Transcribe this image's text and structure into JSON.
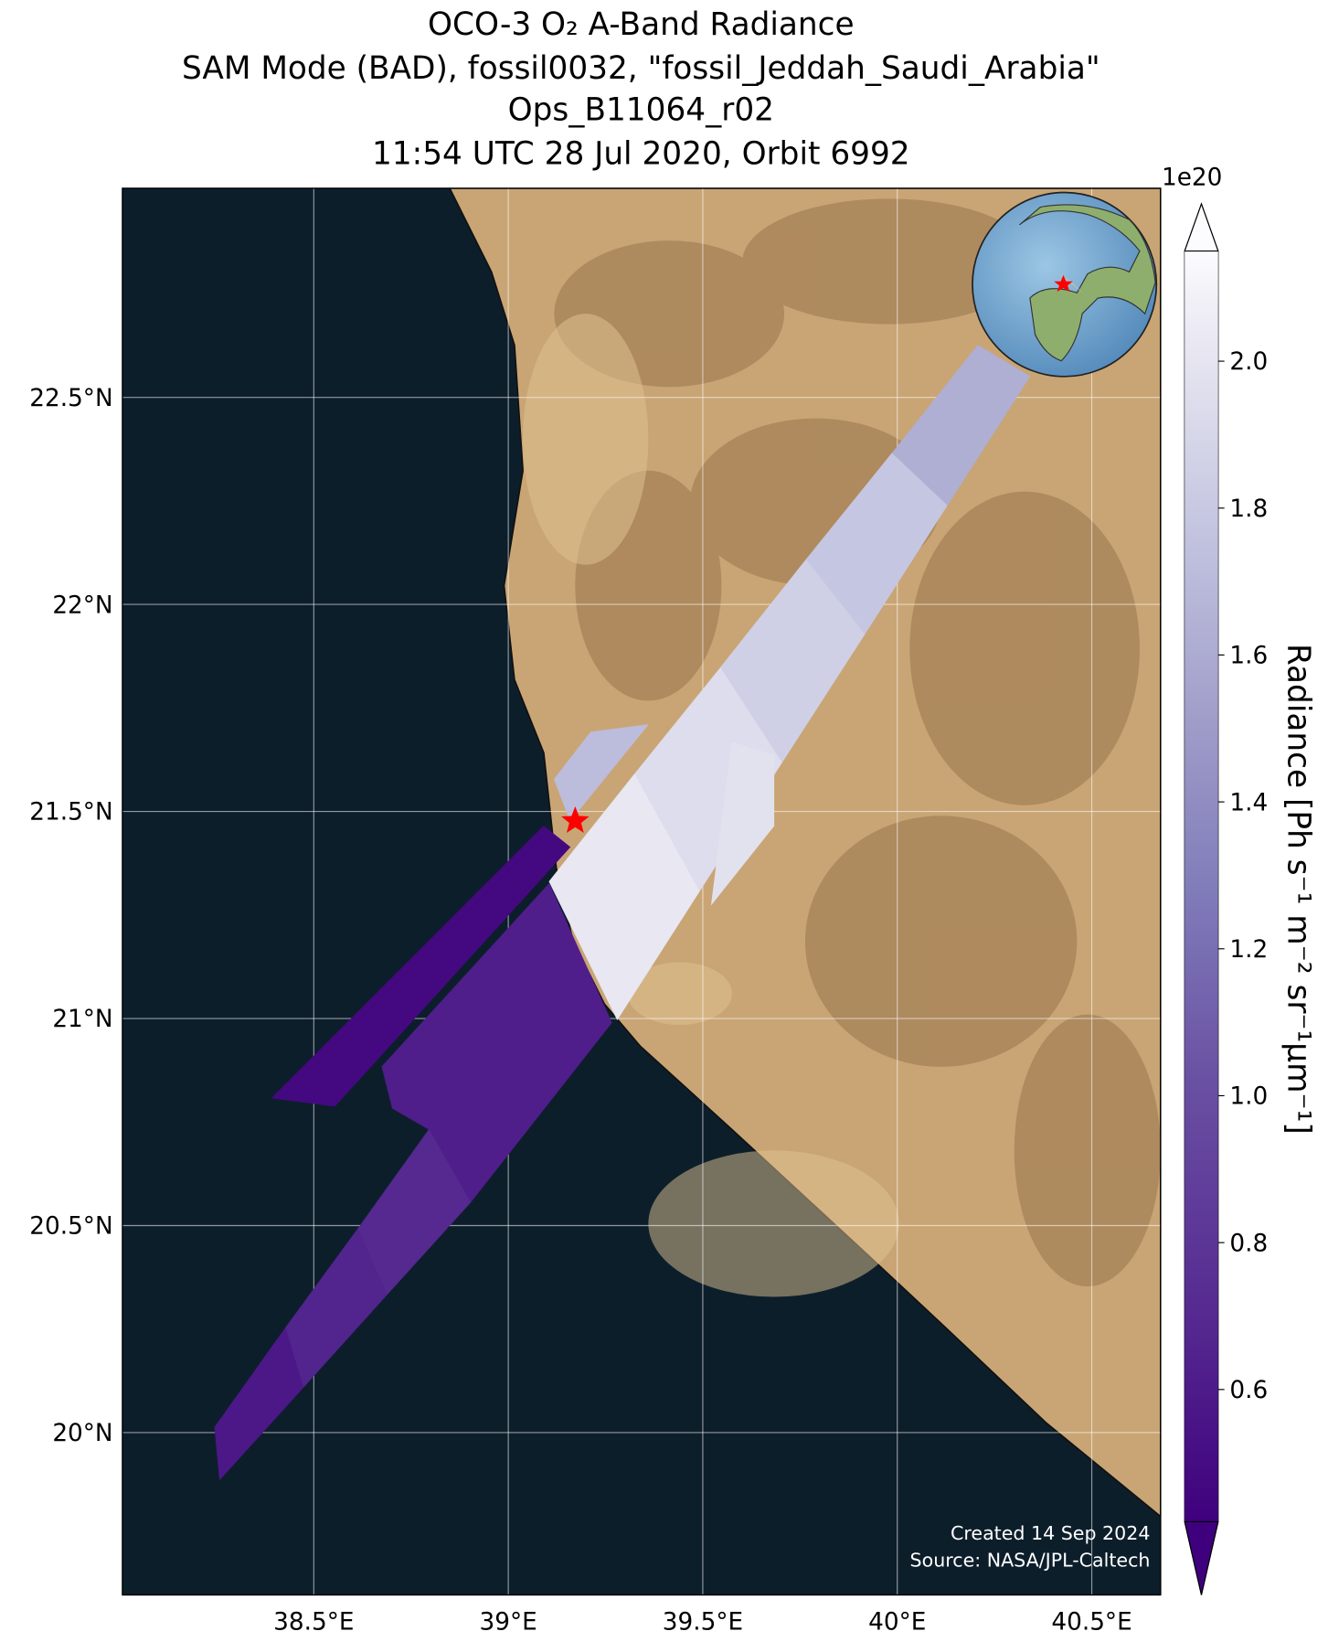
{
  "chart_data": {
    "type": "map",
    "title": [
      "OCO-3 O₂ A-Band Radiance",
      "SAM Mode (BAD), fossil0032, \"fossil_Jeddah_Saudi_Arabia\"",
      "Ops_B11064_r02",
      "11:54 UTC 28 Jul 2020, Orbit 6992"
    ],
    "xlim": [
      38.008,
      40.677
    ],
    "ylim": [
      19.608,
      23.005
    ],
    "xticks": [
      {
        "value": 38.5,
        "label": "38.5°E"
      },
      {
        "value": 39,
        "label": "39°E"
      },
      {
        "value": 39.5,
        "label": "39.5°E"
      },
      {
        "value": 40,
        "label": "40°E"
      },
      {
        "value": 40.5,
        "label": "40.5°E"
      }
    ],
    "yticks": [
      {
        "value": 20,
        "label": "20°N"
      },
      {
        "value": 20.5,
        "label": "20.5°N"
      },
      {
        "value": 21,
        "label": "21°N"
      },
      {
        "value": 21.5,
        "label": "21.5°N"
      },
      {
        "value": 22,
        "label": "22°N"
      },
      {
        "value": 22.5,
        "label": "22.5°N"
      }
    ],
    "grid": true,
    "colormap": "Purples",
    "clim": [
      0.42,
      2.15
    ],
    "colorbar_extend": "both",
    "colorbar_offset": "1e20",
    "colorbar_label": "Radiance [Ph s⁻¹ m⁻² sr⁻¹μm⁻¹]",
    "colorbar_ticks": [
      0.6,
      0.8,
      {
        "value": 1.0,
        "label": "1.0"
      },
      1.2,
      1.4,
      1.6,
      1.8,
      {
        "value": 2.0,
        "label": "2.0"
      }
    ],
    "footprints": [
      {
        "lon": [
          39.105,
          39.28,
          39.492,
          39.325
        ],
        "lat": [
          21.331,
          20.997,
          21.308,
          21.591
        ],
        "value": 2.02
      },
      {
        "lon": [
          39.325,
          39.492,
          39.704,
          39.546
        ],
        "lat": [
          21.591,
          21.308,
          21.619,
          21.848
        ],
        "value": 1.95
      },
      {
        "lon": [
          39.546,
          39.704,
          39.917,
          39.766
        ],
        "lat": [
          21.848,
          21.619,
          21.929,
          22.109
        ],
        "value": 1.85
      },
      {
        "lon": [
          39.766,
          39.917,
          40.129,
          39.987
        ],
        "lat": [
          22.109,
          21.929,
          22.24,
          22.366
        ],
        "value": 1.78
      },
      {
        "lon": [
          39.987,
          40.129,
          40.341,
          40.207
        ],
        "lat": [
          22.366,
          22.24,
          22.551,
          22.626
        ],
        "value": 1.62
      },
      {
        "lon": [
          39.575,
          39.683,
          39.683,
          39.522
        ],
        "lat": [
          21.667,
          21.636,
          21.465,
          21.275
        ],
        "value": 1.98
      },
      {
        "lon": [
          39.118,
          39.212,
          39.36,
          39.159
        ],
        "lat": [
          21.578,
          21.692,
          21.71,
          21.477
        ],
        "value": 1.72
      },
      {
        "lon": [
          38.392,
          39.091,
          39.159,
          38.554
        ],
        "lat": [
          20.808,
          21.465,
          21.414,
          20.788
        ],
        "value": 0.48
      },
      {
        "lon": [
          38.675,
          39.105,
          39.266,
          38.903,
          38.796,
          38.702
        ],
        "lat": [
          20.884,
          21.326,
          20.99,
          20.556,
          20.732,
          20.783
        ],
        "value": 0.62
      },
      {
        "lon": [
          38.796,
          38.903,
          38.688,
          38.613
        ],
        "lat": [
          20.732,
          20.556,
          20.333,
          20.492
        ],
        "value": 0.7
      },
      {
        "lon": [
          38.613,
          38.688,
          38.473,
          38.427
        ],
        "lat": [
          20.492,
          20.333,
          20.109,
          20.253
        ],
        "value": 0.66
      },
      {
        "lon": [
          38.427,
          38.473,
          38.258,
          38.245
        ],
        "lat": [
          20.253,
          20.109,
          19.886,
          20.013
        ],
        "value": 0.58
      }
    ],
    "target": {
      "lon": 39.172,
      "lat": 21.477
    },
    "footnotes": [
      "Created 14 Sep 2024",
      "Source: NASA/JPL-Caltech"
    ]
  }
}
